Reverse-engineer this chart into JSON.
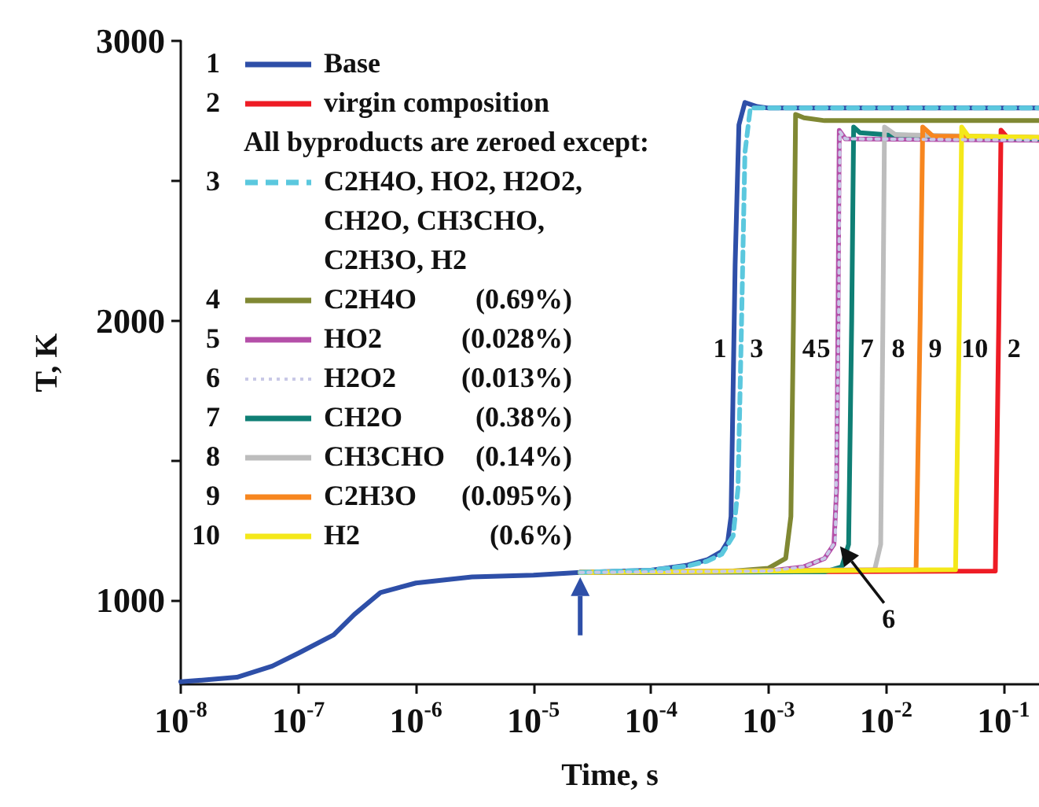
{
  "chart_data": {
    "type": "line",
    "xlabel": "Time, s",
    "ylabel": "T, K",
    "legend_title": "All byproducts are zeroed except:",
    "log": "x",
    "legend": "top left",
    "grid": false,
    "marker": "none",
    "xlim": [
      1e-08,
      0.2
    ],
    "ylim": [
      700,
      3000
    ],
    "xticks": [
      {
        "value": 1e-08,
        "label": "10$^{-8}$"
      },
      {
        "value": 1e-07,
        "label": "10$^{-7}$"
      },
      {
        "value": 1e-06,
        "label": "10$^{-6}$"
      },
      {
        "value": 1e-05,
        "label": "10$^{-5}$"
      },
      {
        "value": 0.0001,
        "label": "10$^{-4}$"
      },
      {
        "value": 0.001,
        "label": "10$^{-3}$"
      },
      {
        "value": 0.01,
        "label": "10$^{-2}$"
      },
      {
        "value": 0.1,
        "label": "10$^{-1}$"
      }
    ],
    "yticks": [
      1000,
      {
        "value": 1500,
        "label": null
      },
      2000,
      {
        "value": 2500,
        "label": null
      },
      3000
    ],
    "series": [
      {
        "name": "Base",
        "color": "#2e4fa8",
        "line_style": "solid",
        "x": [
          1e-08,
          3e-08,
          6e-08,
          1e-07,
          2e-07,
          3e-07,
          5e-07,
          1e-06,
          3e-06,
          1e-05,
          2.5e-05,
          0.0001,
          0.0002,
          0.0003,
          0.0004,
          0.00045,
          0.00048,
          0.00052,
          0.00056,
          0.00063,
          0.0008,
          0.001,
          0.2
        ],
        "values": [
          709,
          725,
          765,
          811,
          877,
          950,
          1028,
          1062,
          1084,
          1090,
          1100,
          1108,
          1125,
          1145,
          1175,
          1210,
          1300,
          2200,
          2700,
          2780,
          2765,
          2760,
          2760
        ]
      },
      {
        "name": "virgin composition",
        "color": "#ee1c25",
        "line_style": "solid",
        "x": [
          2.5e-05,
          0.001,
          0.085,
          0.091,
          0.095,
          0.11,
          0.2
        ],
        "values": [
          1100,
          1102,
          1105,
          2000,
          2681,
          2650,
          2645
        ]
      },
      {
        "name": "C2H4O, HO2, H2O2, CH2O, CH3CHO, C2H3O, H2",
        "color": "#5bc8de",
        "line_style": "dashed",
        "x": [
          2.5e-05,
          0.0001,
          0.0002,
          0.0003,
          0.0004,
          0.0005,
          0.00055,
          0.00059,
          0.00063,
          0.0007,
          0.2
        ],
        "values": [
          1100,
          1108,
          1122,
          1140,
          1165,
          1230,
          1400,
          2000,
          2600,
          2760,
          2760
        ]
      },
      {
        "name": "C2H4O (0.69%)",
        "color": "#808833",
        "line_style": "solid",
        "x": [
          2.5e-05,
          0.0001,
          0.0005,
          0.001,
          0.0014,
          0.00155,
          0.00163,
          0.0017,
          0.002,
          0.003,
          0.2
        ],
        "values": [
          1100,
          1102,
          1105,
          1115,
          1150,
          1300,
          2000,
          2737,
          2725,
          2715,
          2715
        ]
      },
      {
        "name": "HO2 (0.028%)",
        "color": "#b44fa8",
        "line_style": "solid",
        "x": [
          2.5e-05,
          0.001,
          0.002,
          0.003,
          0.0036,
          0.0038,
          0.0039,
          0.004,
          0.0045,
          0.2
        ],
        "values": [
          1100,
          1105,
          1120,
          1150,
          1200,
          1400,
          2000,
          2680,
          2650,
          2645
        ]
      },
      {
        "name": "H2O2 (0.013%)",
        "color": "#c8c8e6",
        "line_style": "dotted",
        "x": [
          2.5e-05,
          0.001,
          0.002,
          0.003,
          0.0037,
          0.00395,
          0.00405,
          0.0045,
          0.2
        ],
        "values": [
          1100,
          1105,
          1120,
          1150,
          1210,
          2000,
          2675,
          2650,
          2645
        ]
      },
      {
        "name": "CH2O (0.38%)",
        "color": "#0f7f75",
        "line_style": "solid",
        "x": [
          2.5e-05,
          0.003,
          0.0042,
          0.0048,
          0.0051,
          0.0053,
          0.006,
          0.01,
          0.2
        ],
        "values": [
          1100,
          1102,
          1120,
          1200,
          2000,
          2692,
          2672,
          2665,
          2650
        ]
      },
      {
        "name": "CH3CHO (0.14%)",
        "color": "#bdbdbd",
        "line_style": "solid",
        "x": [
          2.5e-05,
          0.008,
          0.009,
          0.0094,
          0.0097,
          0.012,
          0.2
        ],
        "values": [
          1100,
          1110,
          1200,
          2000,
          2692,
          2665,
          2655
        ]
      },
      {
        "name": "C2H3O (0.095%)",
        "color": "#f7861f",
        "line_style": "solid",
        "x": [
          2.5e-05,
          0.018,
          0.0195,
          0.0205,
          0.025,
          0.2
        ],
        "values": [
          1100,
          1110,
          2000,
          2692,
          2660,
          2655
        ]
      },
      {
        "name": "H2 (0.6%)",
        "color": "#f4e81a",
        "line_style": "solid",
        "x": [
          2.5e-05,
          0.039,
          0.042,
          0.044,
          0.05,
          0.2
        ],
        "values": [
          1100,
          1110,
          2000,
          2692,
          2660,
          2655
        ]
      }
    ],
    "annotations": [
      {
        "text": "1",
        "x": 0.00051,
        "y": 1900
      },
      {
        "text": "3",
        "x": 0.000583,
        "y": 1900
      },
      {
        "text": "4",
        "x": 0.00162,
        "y": 1900
      },
      {
        "text": "5",
        "x": 0.00388,
        "y": 1900
      },
      {
        "text": "7",
        "x": 0.00506,
        "y": 1900
      },
      {
        "text": "8",
        "x": 0.00935,
        "y": 1900
      },
      {
        "text": "9",
        "x": 0.0193,
        "y": 1900
      },
      {
        "text": "10",
        "x": 0.0417,
        "y": 1900
      },
      {
        "text": "2",
        "x": 0.0903,
        "y": 1900
      },
      {
        "text": "6",
        "x": 0.0037,
        "y": 1210
      }
    ]
  }
}
